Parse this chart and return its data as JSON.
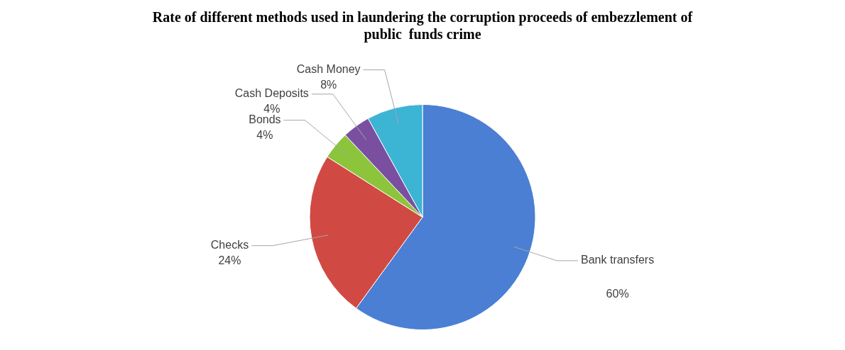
{
  "chart_data": {
    "type": "pie",
    "title": "Rate of different methods used in laundering the corruption proceeds of embezzlement of public  funds crime",
    "categories": [
      "Bank transfers",
      "Checks",
      "Bonds",
      "Cash Deposits",
      "Cash Money"
    ],
    "values": [
      60,
      24,
      4,
      4,
      8
    ],
    "value_labels": [
      "60%",
      "24%",
      "4%",
      "4%",
      "8%"
    ],
    "colors": [
      "#4a7fd4",
      "#d04a43",
      "#8cc43c",
      "#7a4fa0",
      "#3cb4d4"
    ],
    "legend": false
  }
}
